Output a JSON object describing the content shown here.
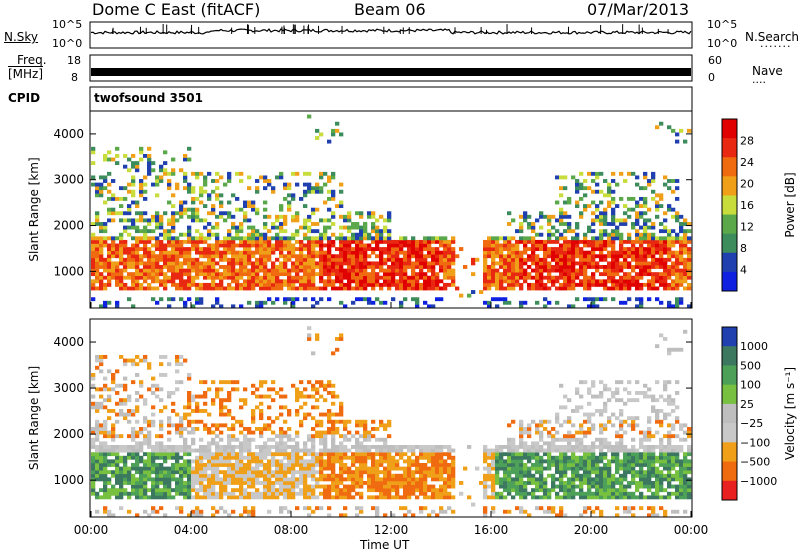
{
  "header": {
    "station": "Dome C East (fitACF)",
    "beam": "Beam 06",
    "date": "07/Mar/2013"
  },
  "top_panels": {
    "nsky": {
      "left_label": "N.Sky",
      "right_label": "N.Search",
      "left_ticks": [
        "10^5",
        "10^0"
      ],
      "right_ticks": [
        "10^5",
        "10^0"
      ]
    },
    "freq": {
      "left_label_1": "Freq.",
      "left_label_2": "[MHz]",
      "right_label": "Nave",
      "left_ticks": [
        "18",
        "8"
      ],
      "right_ticks": [
        "60",
        "0"
      ]
    },
    "cpid": {
      "label": "CPID",
      "value": "twofsound 3501"
    }
  },
  "colors": {
    "power_scale": [
      "#1020e0",
      "#2040b0",
      "#3c8c5c",
      "#5aa84a",
      "#c8dc3c",
      "#f0a018",
      "#f06a10",
      "#e82810",
      "#e00000"
    ],
    "velocity_scale": [
      "#2040b0",
      "#3c7860",
      "#4ca058",
      "#78c040",
      "#bebebe",
      "#c8c8c8",
      "#f0a018",
      "#f06a10",
      "#e82020"
    ]
  },
  "chart_data": [
    {
      "type": "heatmap",
      "name": "power",
      "ylabel": "Slant Range [km]",
      "ylim": [
        200,
        4500
      ],
      "yticks": [
        1000,
        2000,
        3000,
        4000
      ],
      "xlim": [
        0,
        24
      ],
      "xticks": [
        "00:00",
        "04:00",
        "08:00",
        "12:00",
        "16:00",
        "20:00",
        "00:00"
      ],
      "colorbar": {
        "label": "Power [dB]",
        "ticks": [
          "28",
          "24",
          "20",
          "16",
          "12",
          "8",
          "4"
        ],
        "range": [
          0,
          30
        ]
      }
    },
    {
      "type": "heatmap",
      "name": "velocity",
      "ylabel": "Slant Range [km]",
      "ylim": [
        200,
        4500
      ],
      "yticks": [
        1000,
        2000,
        3000,
        4000
      ],
      "xlim": [
        0,
        24
      ],
      "xticks": [
        "00:00",
        "04:00",
        "08:00",
        "12:00",
        "16:00",
        "20:00",
        "00:00"
      ],
      "xlabel": "Time UT",
      "colorbar": {
        "label": "Velocity [m s⁻¹]",
        "ticks": [
          "1000",
          "500",
          "100",
          "25",
          "−25",
          "−100",
          "−500",
          "−1000"
        ]
      }
    }
  ]
}
